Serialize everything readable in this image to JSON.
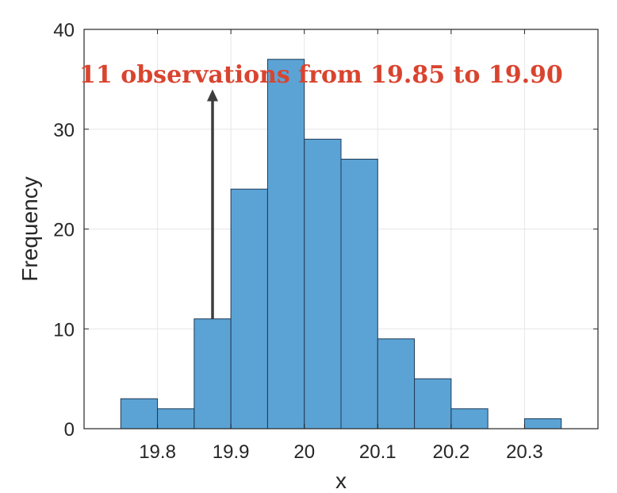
{
  "chart_data": {
    "type": "bar",
    "subtype": "histogram",
    "bin_edges": [
      19.75,
      19.8,
      19.85,
      19.9,
      19.95,
      20.0,
      20.05,
      20.1,
      20.15,
      20.2,
      20.25,
      20.3,
      20.35
    ],
    "values": [
      3,
      2,
      11,
      24,
      37,
      29,
      27,
      9,
      5,
      2,
      0,
      1
    ],
    "xlabel": "x",
    "ylabel": "Frequency",
    "xlim": [
      19.7,
      20.4
    ],
    "ylim": [
      0,
      40
    ],
    "xticks": [
      19.8,
      19.9,
      20.0,
      20.1,
      20.2,
      20.3
    ],
    "xtick_labels": [
      "19.8",
      "19.9",
      "20",
      "20.1",
      "20.2",
      "20.3"
    ],
    "yticks": [
      0,
      10,
      20,
      30,
      40
    ],
    "ytick_labels": [
      "0",
      "10",
      "20",
      "30",
      "40"
    ],
    "grid": true,
    "bar_color": "#5ba3d5",
    "edge_color": "#1f3a55",
    "annotation": {
      "text": "11 observations from 19.85 to 19.90",
      "color": "#d9442f",
      "arrow_x": 19.875,
      "arrow_from_y": 11,
      "arrow_to_y": 34
    }
  }
}
